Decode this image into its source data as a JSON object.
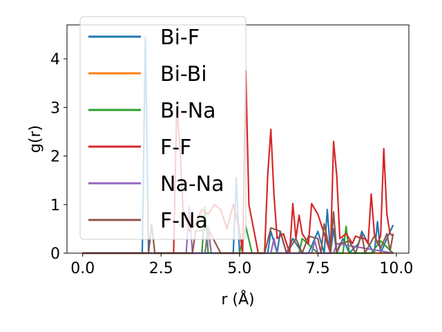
{
  "chart_data": {
    "type": "line",
    "xlabel": "r (Å)",
    "ylabel": "g(r)",
    "xlim": [
      -0.5,
      10.4
    ],
    "ylim": [
      0,
      4.7
    ],
    "xticks": [
      "0.0",
      "2.5",
      "5.0",
      "7.5",
      "10.0"
    ],
    "xtick_values": [
      0,
      2.5,
      5,
      7.5,
      10
    ],
    "yticks": [
      "0",
      "1",
      "2",
      "3",
      "4"
    ],
    "ytick_values": [
      0,
      1,
      2,
      3,
      4
    ],
    "grid": false,
    "legend_position": "upper-left",
    "series": [
      {
        "name": "Bi-F",
        "color": "#1f77b4",
        "x": [
          0.0,
          1.9,
          2.0,
          2.1,
          2.2,
          3.5,
          3.9,
          4.0,
          4.3,
          4.5,
          4.8,
          4.9,
          5.0,
          5.2,
          5.3,
          5.9,
          6.0,
          6.2,
          6.3,
          6.5,
          6.7,
          7.0,
          7.2,
          7.5,
          7.7,
          7.8,
          7.9,
          8.0,
          8.1,
          8.3,
          8.5,
          8.8,
          8.9,
          9.1,
          9.3,
          9.4,
          9.5,
          9.7,
          9.9
        ],
        "y": [
          0.0,
          0.0,
          4.45,
          0.0,
          0.0,
          0.0,
          0.0,
          0.0,
          0.0,
          0.0,
          0.0,
          1.55,
          0.0,
          0.0,
          0.0,
          0.0,
          0.45,
          0.0,
          0.45,
          0.0,
          0.3,
          0.0,
          0.0,
          0.45,
          0.0,
          0.9,
          0.0,
          0.5,
          0.0,
          0.3,
          0.0,
          0.2,
          0.45,
          0.2,
          0.0,
          0.65,
          0.0,
          0.3,
          0.58
        ]
      },
      {
        "name": "Bi-Bi",
        "color": "#ff7f0e",
        "x": [
          0.0,
          3.9,
          4.0,
          4.1,
          6.0,
          8.0,
          9.0,
          9.9
        ],
        "y": [
          0.0,
          0.0,
          0.45,
          0.0,
          0.0,
          0.0,
          0.0,
          0.0
        ]
      },
      {
        "name": "Bi-Na",
        "color": "#2ca02c",
        "x": [
          0.0,
          3.8,
          3.9,
          4.0,
          4.2,
          4.5,
          5.0,
          5.2,
          5.4,
          6.5,
          6.9,
          7.0,
          7.5,
          8.3,
          8.4,
          8.5,
          9.2,
          9.5,
          9.9
        ],
        "y": [
          0.0,
          0.0,
          0.95,
          0.0,
          0.0,
          0.0,
          0.0,
          0.55,
          0.0,
          0.0,
          0.0,
          0.3,
          0.0,
          0.0,
          0.55,
          0.0,
          0.0,
          0.25,
          0.0
        ]
      },
      {
        "name": "F-F",
        "color": "#d62728",
        "x": [
          0.0,
          2.5,
          2.6,
          2.7,
          2.9,
          3.0,
          3.1,
          3.2,
          3.4,
          3.6,
          3.8,
          4.0,
          4.2,
          4.4,
          4.6,
          4.8,
          5.0,
          5.1,
          5.2,
          5.3,
          5.6,
          5.8,
          5.9,
          6.0,
          6.1,
          6.2,
          6.4,
          6.6,
          6.7,
          6.8,
          6.9,
          7.0,
          7.2,
          7.3,
          7.5,
          7.7,
          7.8,
          7.9,
          8.0,
          8.1,
          8.2,
          8.4,
          8.6,
          8.7,
          8.9,
          9.0,
          9.1,
          9.2,
          9.3,
          9.4,
          9.5,
          9.6,
          9.7,
          9.8,
          9.9
        ],
        "y": [
          0.0,
          0.0,
          0.0,
          0.0,
          0.0,
          3.0,
          2.2,
          0.9,
          0.45,
          0.6,
          0.9,
          0.8,
          1.0,
          0.9,
          0.5,
          1.0,
          0.5,
          0.0,
          3.75,
          1.0,
          0.0,
          0.0,
          1.6,
          2.55,
          1.2,
          0.3,
          0.4,
          0.0,
          1.02,
          0.3,
          0.78,
          0.4,
          0.2,
          1.02,
          0.8,
          0.4,
          0.2,
          0.0,
          2.3,
          1.6,
          0.3,
          0.4,
          0.2,
          0.35,
          0.3,
          0.3,
          0.2,
          1.22,
          0.4,
          0.2,
          0.35,
          2.15,
          0.8,
          0.4,
          0.35
        ]
      },
      {
        "name": "Na-Na",
        "color": "#9467bd",
        "x": [
          0.0,
          3.3,
          3.4,
          3.5,
          3.9,
          4.0,
          4.1,
          6.0,
          6.1,
          6.2,
          7.3,
          7.4,
          7.5,
          8.0,
          8.1,
          9.9
        ],
        "y": [
          0.0,
          0.0,
          0.95,
          0.0,
          0.0,
          0.55,
          0.0,
          0.0,
          0.3,
          0.0,
          0.0,
          0.25,
          0.0,
          0.0,
          0.2,
          0.0
        ]
      },
      {
        "name": "F-Na",
        "color": "#8c564b",
        "x": [
          0.0,
          2.1,
          2.2,
          2.3,
          3.5,
          3.6,
          4.0,
          4.4,
          5.0,
          5.8,
          6.0,
          6.3,
          6.5,
          6.8,
          7.0,
          7.2,
          7.5,
          7.6,
          7.7,
          7.8,
          7.9,
          8.0,
          8.1,
          8.2,
          8.5,
          8.7,
          8.9,
          9.0,
          9.3,
          9.5,
          9.7,
          9.8,
          9.9
        ],
        "y": [
          0.0,
          0.0,
          0.6,
          0.0,
          0.0,
          0.45,
          0.5,
          0.0,
          0.0,
          0.0,
          0.52,
          0.45,
          0.0,
          0.3,
          0.0,
          0.35,
          0.3,
          0.0,
          0.6,
          0.3,
          0.0,
          0.85,
          0.0,
          0.2,
          0.25,
          0.0,
          0.4,
          0.0,
          0.35,
          0.1,
          0.4,
          0.05,
          0.4
        ]
      }
    ]
  }
}
